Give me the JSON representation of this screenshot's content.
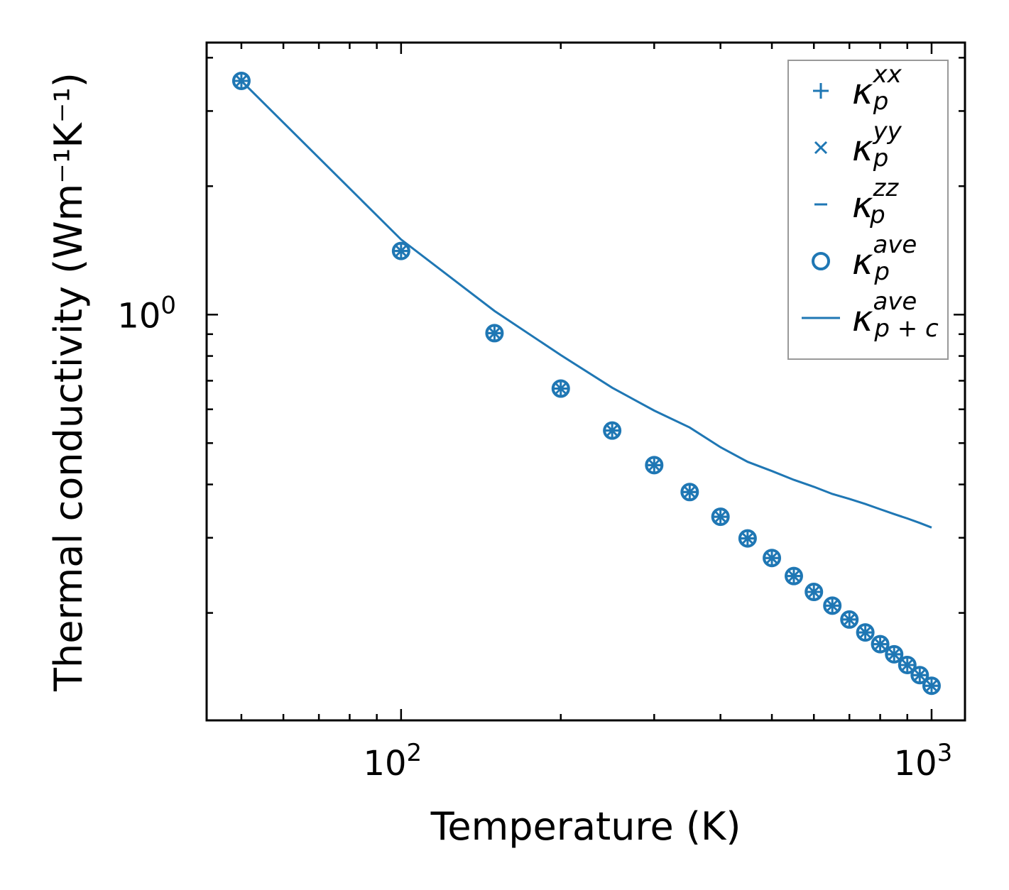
{
  "chart_data": {
    "type": "scatter",
    "title": "",
    "xlabel": "Temperature (K)",
    "ylabel": "Thermal conductivity (Wm⁻¹K⁻¹)",
    "xscale": "log",
    "yscale": "log",
    "xlim": [
      43,
      1156
    ],
    "ylim": [
      0.112,
      4.34
    ],
    "x_ticks": [
      {
        "value": 100,
        "label": "10",
        "exp": "2"
      },
      {
        "value": 1000,
        "label": "10",
        "exp": "3"
      }
    ],
    "y_ticks": [
      {
        "value": 1,
        "label": "10",
        "exp": "0"
      }
    ],
    "grid": false,
    "legend_position": "top-right",
    "x": [
      50,
      100,
      150,
      200,
      250,
      300,
      350,
      400,
      450,
      500,
      550,
      600,
      650,
      700,
      750,
      800,
      850,
      900,
      950,
      1000
    ],
    "series": [
      {
        "name": "xx",
        "label": {
          "base": "κ",
          "sub": "p",
          "sup": "xx"
        },
        "marker": "plus",
        "values": [
          3.53,
          1.41,
          0.905,
          0.671,
          0.535,
          0.444,
          0.384,
          0.336,
          0.299,
          0.269,
          0.244,
          0.224,
          0.208,
          0.193,
          0.18,
          0.169,
          0.16,
          0.151,
          0.143,
          0.135
        ]
      },
      {
        "name": "yy",
        "label": {
          "base": "κ",
          "sub": "p",
          "sup": "yy"
        },
        "marker": "x",
        "values": [
          3.53,
          1.41,
          0.905,
          0.671,
          0.535,
          0.444,
          0.384,
          0.336,
          0.299,
          0.269,
          0.244,
          0.224,
          0.208,
          0.193,
          0.18,
          0.169,
          0.16,
          0.151,
          0.143,
          0.135
        ]
      },
      {
        "name": "zz",
        "label": {
          "base": "κ",
          "sub": "p",
          "sup": "zz"
        },
        "marker": "hline",
        "values": [
          3.53,
          1.41,
          0.905,
          0.671,
          0.535,
          0.444,
          0.384,
          0.336,
          0.299,
          0.269,
          0.244,
          0.224,
          0.208,
          0.193,
          0.18,
          0.169,
          0.16,
          0.151,
          0.143,
          0.135
        ]
      },
      {
        "name": "ave",
        "label": {
          "base": "κ",
          "sub": "p",
          "sup": "ave"
        },
        "marker": "circle",
        "values": [
          3.53,
          1.41,
          0.905,
          0.671,
          0.535,
          0.444,
          0.384,
          0.336,
          0.299,
          0.269,
          0.244,
          0.224,
          0.208,
          0.193,
          0.18,
          0.169,
          0.16,
          0.151,
          0.143,
          0.135
        ]
      },
      {
        "name": "ave_pc",
        "label": {
          "base": "κ",
          "sub": "p + c",
          "sup": "ave"
        },
        "marker": "line",
        "values": [
          3.53,
          1.5,
          1.02,
          0.804,
          0.674,
          0.596,
          0.544,
          0.489,
          0.452,
          0.43,
          0.41,
          0.395,
          0.38,
          0.37,
          0.36,
          0.35,
          0.341,
          0.333,
          0.325,
          0.317
        ]
      }
    ],
    "color": "#1f77b4"
  }
}
